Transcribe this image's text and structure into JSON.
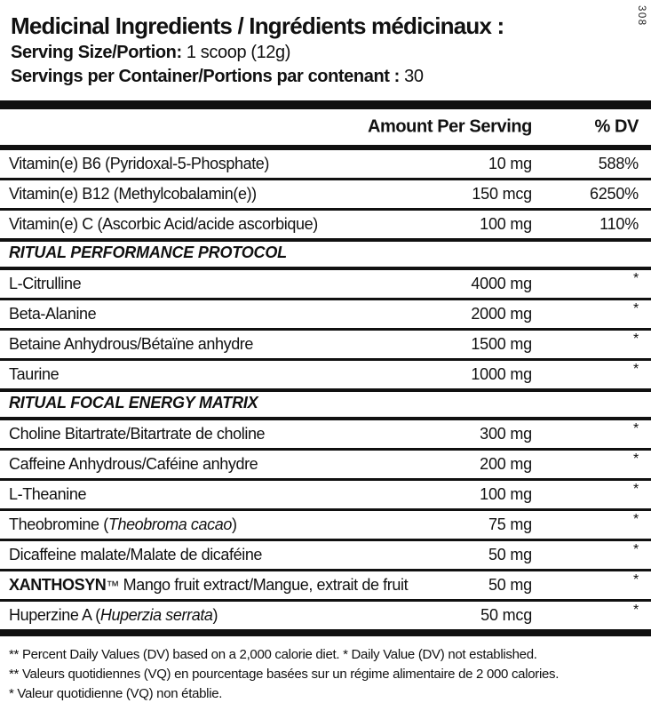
{
  "side_code": "308",
  "header": {
    "title": "Medicinal Ingredients / Ingrédients médicinaux :",
    "serving_size_label": "Serving Size/Portion:",
    "serving_size_value": "1 scoop (12g)",
    "servings_label": "Servings per Container/Portions par contenant :",
    "servings_value": "30"
  },
  "table": {
    "amount_header": "Amount Per Serving",
    "dv_header": "% DV",
    "rows": [
      {
        "type": "item",
        "parts": [
          {
            "t": "Vitamin(e) B6 (Pyridoxal-5-Phosphate)"
          }
        ],
        "amount": "10 mg",
        "dv": "588%"
      },
      {
        "type": "item",
        "parts": [
          {
            "t": "Vitamin(e) B12 (Methylcobalamin(e))"
          }
        ],
        "amount": "150 mcg",
        "dv": "6250%"
      },
      {
        "type": "item",
        "parts": [
          {
            "t": "Vitamin(e) C (Ascorbic Acid/acide ascorbique)"
          }
        ],
        "amount": "100 mg",
        "dv": "110%"
      },
      {
        "type": "section",
        "parts": [
          {
            "t": "RITUAL PERFORMANCE PROTOCOL"
          }
        ]
      },
      {
        "type": "item",
        "parts": [
          {
            "t": "L-Citrulline"
          }
        ],
        "amount": "4000 mg",
        "dv": "*"
      },
      {
        "type": "item",
        "parts": [
          {
            "t": "Beta-Alanine"
          }
        ],
        "amount": "2000 mg",
        "dv": "*"
      },
      {
        "type": "item",
        "parts": [
          {
            "t": "Betaine Anhydrous/Bétaïne anhydre"
          }
        ],
        "amount": "1500 mg",
        "dv": "*"
      },
      {
        "type": "item",
        "parts": [
          {
            "t": "Taurine"
          }
        ],
        "amount": "1000 mg",
        "dv": "*"
      },
      {
        "type": "section",
        "parts": [
          {
            "t": "RITUAL FOCAL ENERGY MATRIX"
          }
        ]
      },
      {
        "type": "item",
        "parts": [
          {
            "t": "Choline Bitartrate/Bitartrate de choline"
          }
        ],
        "amount": "300 mg",
        "dv": "*"
      },
      {
        "type": "item",
        "parts": [
          {
            "t": "Caffeine Anhydrous/Caféine anhydre"
          }
        ],
        "amount": "200 mg",
        "dv": "*"
      },
      {
        "type": "item",
        "parts": [
          {
            "t": "L-Theanine"
          }
        ],
        "amount": "100 mg",
        "dv": "*"
      },
      {
        "type": "item",
        "parts": [
          {
            "t": "Theobromine ("
          },
          {
            "t": "Theobroma cacao",
            "style": "italic"
          },
          {
            "t": ")"
          }
        ],
        "amount": "75 mg",
        "dv": "*"
      },
      {
        "type": "item",
        "parts": [
          {
            "t": "Dicaffeine malate/Malate de dicaféine"
          }
        ],
        "amount": "50 mg",
        "dv": "*"
      },
      {
        "type": "item",
        "parts": [
          {
            "t": "XANTHOSYN",
            "style": "bold"
          },
          {
            "t": "™",
            "style": "tm"
          },
          {
            "t": " Mango fruit extract/Mangue, extrait de fruit"
          }
        ],
        "amount": "50 mg",
        "dv": "*"
      },
      {
        "type": "item",
        "parts": [
          {
            "t": "Huperzine A ("
          },
          {
            "t": "Huperzia serrata",
            "style": "italic"
          },
          {
            "t": ")"
          }
        ],
        "amount": "50 mcg",
        "dv": "*"
      }
    ]
  },
  "footnotes": [
    "** Percent Daily Values (DV) based on a 2,000 calorie diet. * Daily Value (DV) not established.",
    "** Valeurs quotidiennes (VQ) en pourcentage basées sur un régime alimentaire de 2 000 calories.",
    "* Valeur quotidienne (VQ) non établie."
  ]
}
